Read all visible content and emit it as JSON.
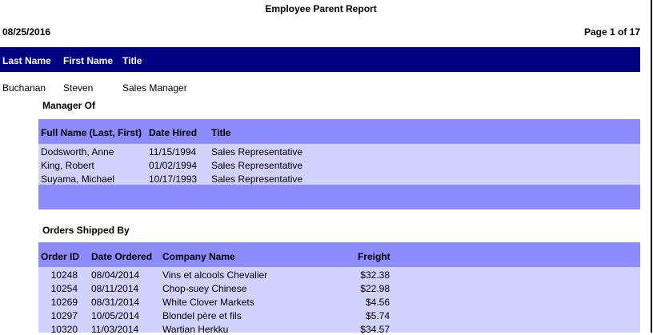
{
  "header": {
    "title": "Employee Parent Report",
    "date": "08/25/2016",
    "page": "Page 1 of 17"
  },
  "main_table": {
    "columns": [
      "Last Name",
      "First Name",
      "Title"
    ],
    "rows": [
      [
        "Buchanan",
        "Steven",
        "Sales Manager"
      ]
    ]
  },
  "manager_of": {
    "title": "Manager Of",
    "columns": [
      "Full Name (Last, First)",
      "Date Hired",
      "Title"
    ],
    "rows": [
      [
        "Dodsworth, Anne",
        "11/15/1994",
        "Sales Representative"
      ],
      [
        "King, Robert",
        "01/02/1994",
        "Sales Representative"
      ],
      [
        "Suyama, Michael",
        "10/17/1993",
        "Sales Representative"
      ]
    ]
  },
  "orders": {
    "title": "Orders Shipped By",
    "columns": [
      "Order ID",
      "Date Ordered",
      "Company Name",
      "Freight"
    ],
    "rows": [
      [
        "10248",
        "08/04/2014",
        "Vins et alcools Chevalier",
        "$32.38"
      ],
      [
        "10254",
        "08/11/2014",
        "Chop-suey Chinese",
        "$22.98"
      ],
      [
        "10269",
        "08/31/2014",
        "White Clover Markets",
        "$4.56"
      ],
      [
        "10297",
        "10/05/2014",
        "Blondel père et fils",
        "$5.74"
      ],
      [
        "10320",
        "11/03/2014",
        "Wartian Herkku",
        "$34.57"
      ]
    ]
  }
}
